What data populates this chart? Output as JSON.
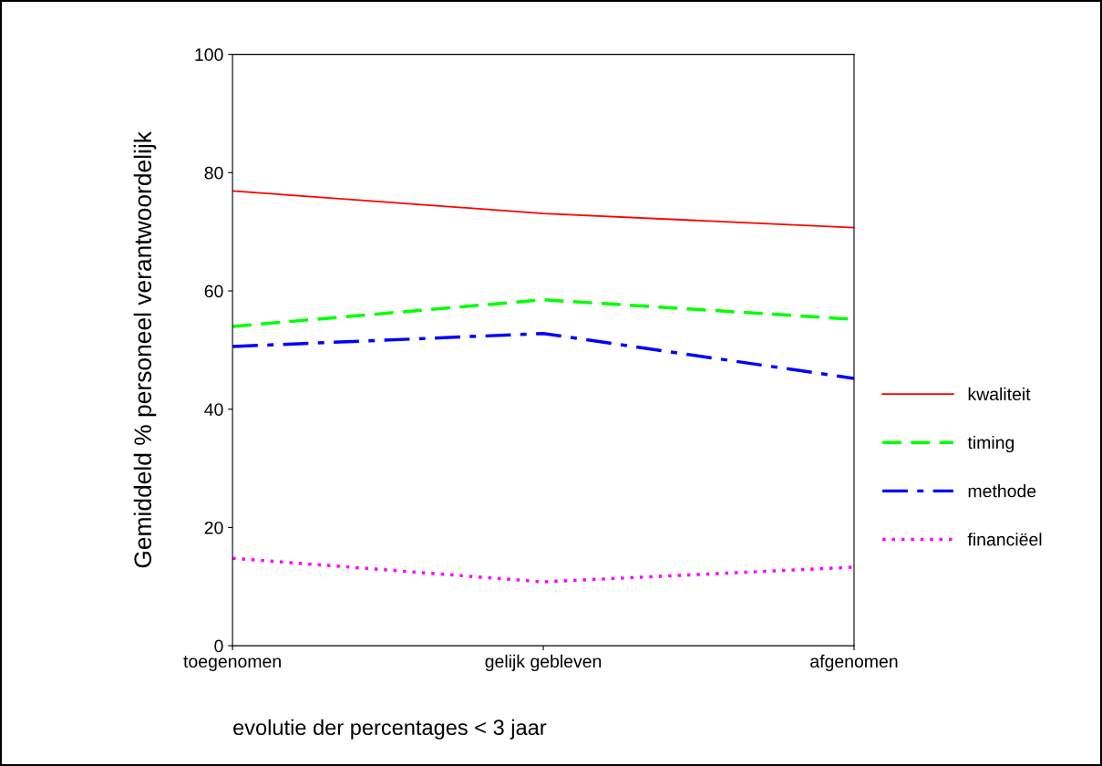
{
  "chart_data": {
    "type": "line",
    "xlabel": "evolutie der percentages < 3 jaar",
    "ylabel": "Gemiddeld % personeel verantwoordelijk",
    "categories": [
      "toegenomen",
      "gelijk gebleven",
      "afgenomen"
    ],
    "series": [
      {
        "name": "kwaliteit",
        "color": "#ff0000",
        "line_style": "solid",
        "values": [
          76.9,
          73.1,
          70.7
        ]
      },
      {
        "name": "timing",
        "color": "#00ff00",
        "line_style": "dashed",
        "values": [
          54.0,
          58.5,
          55.2
        ]
      },
      {
        "name": "methode",
        "color": "#0000ff",
        "line_style": "dashdot",
        "values": [
          50.6,
          52.8,
          45.2
        ]
      },
      {
        "name": "financiëel",
        "color": "#ff00ff",
        "line_style": "dotted",
        "values": [
          14.8,
          10.8,
          13.3
        ]
      }
    ],
    "ylim": [
      0,
      100
    ],
    "yticks": [
      0,
      20,
      40,
      60,
      80,
      100
    ],
    "grid": false,
    "legend": "right",
    "marker": "none"
  }
}
